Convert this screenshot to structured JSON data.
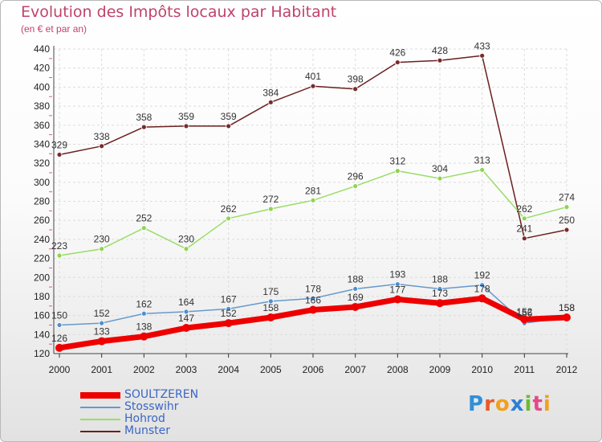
{
  "header": {
    "title": "Evolution des Impôts locaux par Habitant",
    "subtitle": "(en € et par an)"
  },
  "brand": {
    "letters": [
      "P",
      "r",
      "o",
      "x",
      "i",
      "t",
      "i"
    ],
    "colors": [
      "#2f8fd8",
      "#e85a28",
      "#f2a020",
      "#2e7fd3",
      "#6dbb2f",
      "#e44a8a",
      "#f2a020"
    ]
  },
  "chart_data": {
    "type": "line",
    "title": "Evolution des Impôts locaux par Habitant",
    "ylabel": "(en € et par an)",
    "xlabel": "",
    "x": [
      "2000",
      "2001",
      "2002",
      "2003",
      "2004",
      "2005",
      "2006",
      "2007",
      "2008",
      "2009",
      "2010",
      "2011",
      "2012"
    ],
    "ylim": [
      120,
      440
    ],
    "yticks": [
      120,
      140,
      160,
      180,
      200,
      220,
      240,
      260,
      280,
      300,
      320,
      340,
      360,
      380,
      400,
      420,
      440
    ],
    "grid": true,
    "legend_position": "bottom-left",
    "series": [
      {
        "name": "SOULTZEREN",
        "color": "#ee0000",
        "values": [
          126,
          133,
          138,
          147,
          152,
          158,
          166,
          169,
          177,
          173,
          178,
          156,
          158
        ],
        "labels": [
          "126",
          "133",
          "138",
          "147",
          "152",
          "158",
          "166",
          "169",
          "177",
          "173",
          "178",
          "156",
          "158"
        ]
      },
      {
        "name": "Stosswihr",
        "color": "#6699cc",
        "values": [
          150,
          152,
          162,
          164,
          167,
          175,
          178,
          188,
          193,
          188,
          192,
          152,
          158
        ],
        "labels": [
          "150",
          "152",
          "162",
          "164",
          "167",
          "175",
          "178",
          "188",
          "193",
          "188",
          "192",
          "152",
          "158"
        ]
      },
      {
        "name": "Hohrod",
        "color": "#99dd66",
        "values": [
          223,
          230,
          252,
          230,
          262,
          272,
          281,
          296,
          312,
          304,
          313,
          262,
          274
        ],
        "labels": [
          "223",
          "230",
          "252",
          "230",
          "262",
          "272",
          "281",
          "296",
          "312",
          "304",
          "313",
          "262",
          "274"
        ]
      },
      {
        "name": "Munster",
        "color": "#6b1f1f",
        "values": [
          329,
          338,
          358,
          359,
          359,
          384,
          401,
          398,
          426,
          428,
          433,
          241,
          250
        ],
        "labels": [
          "329",
          "338",
          "358",
          "359",
          "359",
          "384",
          "401",
          "398",
          "426",
          "428",
          "433",
          "241",
          "250"
        ]
      }
    ]
  }
}
